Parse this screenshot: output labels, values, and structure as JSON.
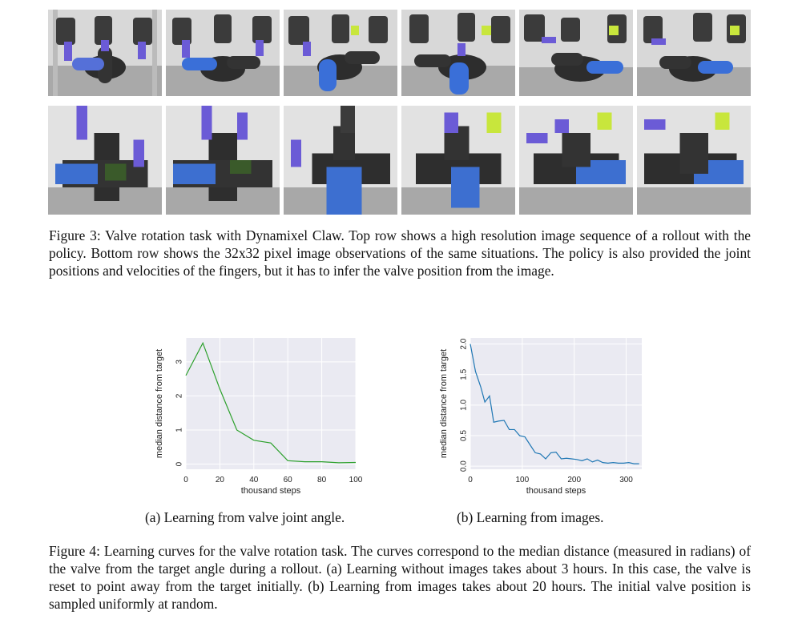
{
  "figure3": {
    "label": "Figure 3:",
    "text": " Valve rotation task with Dynamixel Claw. Top row shows a high resolution image sequence of a rollout with the policy. Bottom row shows the 32x32 pixel image observations of the same situations. The policy is also provided the joint positions and velocities of the fingers, but it has to infer the valve position from the image."
  },
  "figure4": {
    "label": "Figure 4:",
    "text": " Learning curves for the valve rotation task. The curves correspond to the median distance (measured in radians) of the valve from the target angle during a rollout. (a) Learning without images takes about 3 hours. In this case, the valve is reset to point away from the target initially. (b) Learning from images takes about 20 hours. The initial valve position is sampled uniformly at random."
  },
  "subcaptions": {
    "a": "(a) Learning from valve joint angle.",
    "b": "(b) Learning from images."
  },
  "colors": {
    "plot_bg": "#eaeaf2",
    "grid": "#ffffff",
    "series_a": "#2ca02c",
    "series_b": "#1f77b4",
    "valve_blue": "#3a6fd8",
    "claw_purple": "#6b5bd6",
    "marker_green": "#c8e63c"
  },
  "chart_data": [
    {
      "type": "line",
      "xlabel": "thousand steps",
      "ylabel": "median distance from target",
      "xlim": [
        0,
        100
      ],
      "ylim": [
        -0.15,
        3.7
      ],
      "xticks": [
        0,
        20,
        40,
        60,
        80,
        100
      ],
      "yticks": [
        0,
        1,
        2,
        3
      ],
      "grid": true,
      "series": [
        {
          "x": [
            0,
            10,
            20,
            30,
            40,
            50,
            60,
            70,
            80,
            90,
            100
          ],
          "y": [
            2.6,
            3.55,
            2.2,
            1.0,
            0.7,
            0.62,
            0.1,
            0.07,
            0.07,
            0.04,
            0.05
          ]
        }
      ]
    },
    {
      "type": "line",
      "xlabel": "thousand steps",
      "ylabel": "median distance from target",
      "xlim": [
        0,
        330
      ],
      "ylim": [
        -0.05,
        2.1
      ],
      "xticks": [
        0,
        100,
        200,
        300
      ],
      "yticks": [
        0.0,
        0.5,
        1.0,
        1.5,
        2.0
      ],
      "ytick_labels": [
        "0.0",
        "0.5",
        "1.0",
        "1.5",
        "2.0"
      ],
      "grid": true,
      "series": [
        {
          "x": [
            0,
            10,
            20,
            28,
            37,
            45,
            55,
            65,
            75,
            85,
            95,
            105,
            115,
            125,
            135,
            145,
            155,
            165,
            175,
            185,
            195,
            205,
            215,
            225,
            235,
            245,
            255,
            265,
            275,
            285,
            295,
            305,
            315,
            325
          ],
          "y": [
            2.0,
            1.55,
            1.3,
            1.05,
            1.15,
            0.72,
            0.74,
            0.75,
            0.6,
            0.6,
            0.5,
            0.48,
            0.35,
            0.22,
            0.2,
            0.12,
            0.22,
            0.23,
            0.12,
            0.13,
            0.12,
            0.11,
            0.09,
            0.12,
            0.07,
            0.1,
            0.06,
            0.05,
            0.06,
            0.05,
            0.05,
            0.06,
            0.04,
            0.04
          ]
        }
      ]
    }
  ]
}
